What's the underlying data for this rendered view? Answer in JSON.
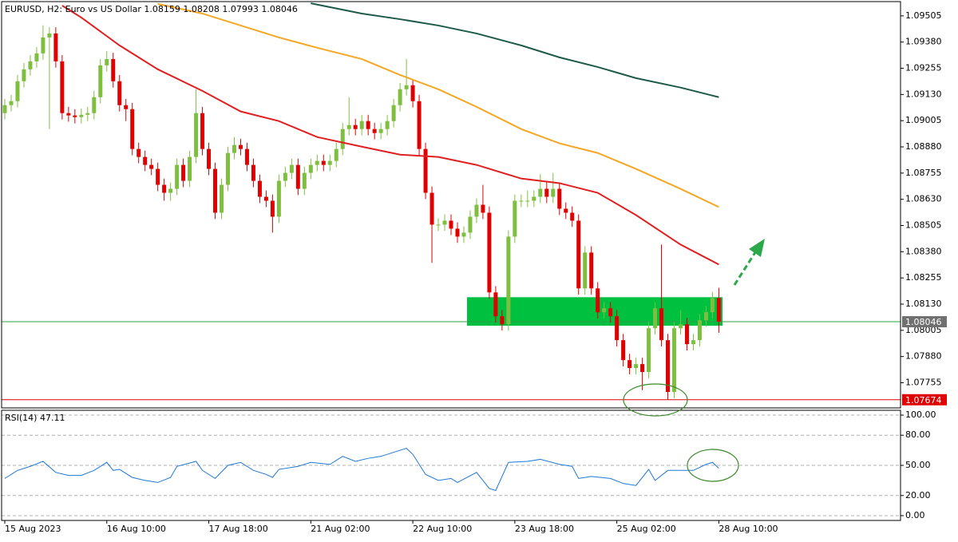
{
  "chart_data": [
    {
      "type": "candlestick",
      "title": "EURUSD, H2:  Euro vs US Dollar  1.08159 1.08208 1.07993 1.08046",
      "bull_color": "#7fbf3f",
      "bear_color": "#e00000",
      "open": [
        1.09041,
        1.09079,
        1.09098,
        1.09193,
        1.0925,
        1.09288,
        1.09326,
        1.09402,
        1.09421,
        1.09288,
        1.09041,
        1.0903,
        1.09022,
        1.09033,
        1.09041,
        1.09117,
        1.09269,
        1.09299,
        1.09193,
        1.09079,
        1.0906,
        1.0887,
        1.08832,
        1.08794,
        1.08775,
        1.08699,
        1.08661,
        1.0868,
        1.08794,
        1.08718,
        1.08832,
        1.09041,
        1.0887,
        1.08775,
        1.08566,
        1.08699,
        1.08851,
        1.08889,
        1.0887,
        1.08794,
        1.08718,
        1.08642,
        1.08623,
        1.08547,
        1.08718,
        1.08756,
        1.08794,
        1.0868,
        1.08756,
        1.08794,
        1.08813,
        1.08794,
        1.08813,
        1.0887,
        1.08965,
        1.08984,
        1.08965,
        1.09003,
        1.08965,
        1.08946,
        1.08965,
        1.09003,
        1.09079,
        1.09155,
        1.09174,
        1.09098,
        1.0887,
        1.08661,
        1.08509,
        1.08509,
        1.08528,
        1.0849,
        1.08452,
        1.08471,
        1.08547,
        1.08604,
        1.08566,
        1.08186,
        1.08072,
        1.08034,
        1.08452,
        1.08623,
        1.08623,
        1.08623,
        1.08642,
        1.0868,
        1.08642,
        1.0868,
        1.08585,
        1.08566,
        1.08528,
        1.08205,
        1.08376,
        1.08205,
        1.08091,
        1.0811,
        1.08072,
        1.07958,
        1.07863,
        1.07825,
        1.07844,
        1.07806,
        1.08015,
        1.0811,
        1.07958,
        1.07711,
        1.08015,
        1.08034,
        1.07939,
        1.07958,
        1.08053,
        1.08091,
        1.08159
      ],
      "high": [
        1.09109,
        1.09128,
        1.09223,
        1.0928,
        1.09318,
        1.09356,
        1.0946,
        1.09451,
        1.09451,
        1.09318,
        1.09071,
        1.0906,
        1.09063,
        1.09071,
        1.09147,
        1.09299,
        1.09337,
        1.09329,
        1.09223,
        1.09109,
        1.0909,
        1.089,
        1.08862,
        1.08824,
        1.08805,
        1.08729,
        1.0871,
        1.08824,
        1.08824,
        1.08862,
        1.09155,
        1.09071,
        1.089,
        1.08805,
        1.08729,
        1.08881,
        1.08927,
        1.08919,
        1.089,
        1.08824,
        1.08748,
        1.08672,
        1.08653,
        1.08748,
        1.08786,
        1.08824,
        1.08824,
        1.08786,
        1.08824,
        1.08843,
        1.08843,
        1.08843,
        1.089,
        1.08995,
        1.09117,
        1.09014,
        1.09033,
        1.09033,
        1.08995,
        1.08995,
        1.09033,
        1.09109,
        1.09185,
        1.09299,
        1.09204,
        1.09128,
        1.089,
        1.08691,
        1.08539,
        1.08558,
        1.08558,
        1.0852,
        1.08501,
        1.08577,
        1.08634,
        1.08699,
        1.08596,
        1.08216,
        1.08102,
        1.08482,
        1.08653,
        1.08653,
        1.08672,
        1.08672,
        1.0875,
        1.0871,
        1.08756,
        1.0871,
        1.08615,
        1.08596,
        1.08558,
        1.08406,
        1.08406,
        1.08235,
        1.0814,
        1.0814,
        1.08102,
        1.07988,
        1.07893,
        1.07874,
        1.07874,
        1.08045,
        1.0814,
        1.08414,
        1.07988,
        1.08045,
        1.08102,
        1.08064,
        1.07988,
        1.08083,
        1.08121,
        1.08189,
        1.08208
      ],
      "low": [
        1.09011,
        1.09049,
        1.09068,
        1.09163,
        1.0922,
        1.09258,
        1.09296,
        1.08965,
        1.09258,
        1.09011,
        1.09,
        1.08992,
        1.08992,
        1.09003,
        1.09011,
        1.09087,
        1.09239,
        1.09163,
        1.09049,
        1.09003,
        1.0884,
        1.08802,
        1.08764,
        1.08745,
        1.08669,
        1.08623,
        1.08623,
        1.0865,
        1.08688,
        1.08688,
        1.08802,
        1.0884,
        1.08745,
        1.08536,
        1.08536,
        1.08669,
        1.08821,
        1.0884,
        1.08764,
        1.08688,
        1.08612,
        1.08593,
        1.08471,
        1.08517,
        1.08688,
        1.08726,
        1.0865,
        1.0865,
        1.08726,
        1.08764,
        1.08764,
        1.08764,
        1.08783,
        1.0884,
        1.08935,
        1.08935,
        1.08935,
        1.08935,
        1.08916,
        1.08916,
        1.08935,
        1.08973,
        1.09049,
        1.09125,
        1.09068,
        1.0884,
        1.08631,
        1.08327,
        1.08479,
        1.08479,
        1.0846,
        1.08422,
        1.08422,
        1.08441,
        1.08517,
        1.08536,
        1.08156,
        1.08042,
        1.08004,
        1.08004,
        1.08422,
        1.08593,
        1.08593,
        1.08593,
        1.08612,
        1.08612,
        1.08612,
        1.08555,
        1.08536,
        1.08498,
        1.08175,
        1.08175,
        1.08175,
        1.08061,
        1.08061,
        1.08042,
        1.07928,
        1.07833,
        1.07795,
        1.07795,
        1.07719,
        1.07776,
        1.07985,
        1.07928,
        1.07674,
        1.07681,
        1.07985,
        1.07909,
        1.07909,
        1.07928,
        1.08023,
        1.08061,
        1.07993
      ],
      "close": [
        1.09079,
        1.09098,
        1.09193,
        1.0925,
        1.09288,
        1.09326,
        1.09402,
        1.09421,
        1.09288,
        1.09041,
        1.0903,
        1.09022,
        1.09033,
        1.09041,
        1.09117,
        1.09269,
        1.09299,
        1.09193,
        1.09079,
        1.0906,
        1.0887,
        1.08832,
        1.08794,
        1.08775,
        1.08699,
        1.08661,
        1.0868,
        1.08794,
        1.08718,
        1.08832,
        1.09041,
        1.0887,
        1.08775,
        1.08566,
        1.08699,
        1.08851,
        1.08889,
        1.0887,
        1.08794,
        1.08718,
        1.08642,
        1.08623,
        1.08547,
        1.08718,
        1.08756,
        1.08794,
        1.0868,
        1.08756,
        1.08794,
        1.08813,
        1.08794,
        1.08813,
        1.0887,
        1.08965,
        1.08984,
        1.08965,
        1.09003,
        1.08965,
        1.08946,
        1.08965,
        1.09003,
        1.09079,
        1.09155,
        1.09174,
        1.09098,
        1.0887,
        1.08661,
        1.08509,
        1.08509,
        1.08528,
        1.0849,
        1.08452,
        1.08471,
        1.08547,
        1.08604,
        1.08566,
        1.08186,
        1.08072,
        1.08034,
        1.08452,
        1.08623,
        1.08623,
        1.08623,
        1.08642,
        1.0868,
        1.08642,
        1.0868,
        1.08585,
        1.08566,
        1.08528,
        1.08205,
        1.08376,
        1.08205,
        1.08091,
        1.0811,
        1.08072,
        1.07958,
        1.07863,
        1.07825,
        1.07844,
        1.07806,
        1.08015,
        1.0811,
        1.07958,
        1.07711,
        1.08015,
        1.08034,
        1.07939,
        1.07958,
        1.08053,
        1.08091,
        1.08159,
        1.08046
      ],
      "series": [
        {
          "color": "#e02020",
          "x": [
            9,
            12,
            18,
            24,
            31,
            37,
            43,
            49,
            56,
            62,
            68,
            74,
            81,
            87,
            93,
            99,
            106,
            112
          ],
          "values": [
            1.09554,
            1.09497,
            1.09364,
            1.0925,
            1.09147,
            1.09049,
            1.09003,
            1.08927,
            1.08881,
            1.08843,
            1.08832,
            1.08794,
            1.08729,
            1.08707,
            1.08661,
            1.08555,
            1.08414,
            1.08319
          ]
        },
        {
          "color": "#f5a623",
          "x": [
            24,
            31,
            37,
            43,
            49,
            56,
            62,
            68,
            74,
            81,
            87,
            93,
            99,
            106,
            112
          ],
          "values": [
            1.09562,
            1.09516,
            1.09459,
            1.09402,
            1.09353,
            1.09299,
            1.09223,
            1.09155,
            1.09071,
            1.08965,
            1.08897,
            1.08851,
            1.08775,
            1.0868,
            1.08593
          ]
        },
        {
          "color": "#1e5a4a",
          "x": [
            48,
            56,
            62,
            68,
            74,
            81,
            87,
            93,
            99,
            106,
            112
          ],
          "values": [
            1.09565,
            1.09516,
            1.09489,
            1.09459,
            1.09421,
            1.09364,
            1.09307,
            1.09261,
            1.09208,
            1.09163,
            1.09117
          ]
        }
      ],
      "price_lines": [
        {
          "value": 1.08046,
          "color": "#2ea043",
          "label_bg": "#707070"
        },
        {
          "value": 1.07674,
          "color": "#e00000",
          "label_bg": "#e00000"
        }
      ],
      "zone": {
        "from": 1.08027,
        "to": 1.08163,
        "color": "#00c040"
      },
      "xlim": [
        -0.5,
        140.5
      ],
      "xticks": [
        {
          "value": 0,
          "label": "15 Aug 2023"
        },
        {
          "value": 16,
          "label": "16 Aug 10:00"
        },
        {
          "value": 32,
          "label": "17 Aug 18:00"
        },
        {
          "value": 48,
          "label": "21 Aug 02:00"
        },
        {
          "value": 64,
          "label": "22 Aug 10:00"
        },
        {
          "value": 80,
          "label": "23 Aug 18:00"
        },
        {
          "value": 96,
          "label": "25 Aug 02:00"
        },
        {
          "value": 112,
          "label": "28 Aug 10:00"
        }
      ],
      "ylim": [
        1.07635,
        1.09573
      ],
      "yticks": [
        1.09505,
        {
          "value": 1.0938,
          "label": "1.09380"
        },
        1.09255,
        {
          "value": 1.0913,
          "label": "1.09130"
        },
        1.09005,
        {
          "value": 1.0888,
          "label": "1.08880"
        },
        1.08755,
        {
          "value": 1.0863,
          "label": "1.08630"
        },
        1.08505,
        {
          "value": 1.0838,
          "label": "1.08380"
        },
        1.08255,
        {
          "value": 1.0813,
          "label": "1.08130"
        },
        1.08005,
        {
          "value": 1.0788,
          "label": "1.07880"
        },
        1.07755
      ]
    },
    {
      "type": "line",
      "title": "RSI(14) 47.11",
      "series": [
        {
          "color": "#1e78d8",
          "x": [
            0,
            2,
            4,
            6,
            8,
            10,
            12,
            14,
            16,
            17,
            18,
            20,
            22,
            24,
            26,
            27,
            30,
            31,
            33,
            35,
            37,
            39,
            41,
            42,
            43,
            46,
            48,
            51,
            53,
            55,
            57,
            59,
            63,
            64,
            66,
            68,
            70,
            71,
            74,
            75,
            76,
            77,
            79,
            82,
            84,
            87,
            89,
            90,
            92,
            95,
            97,
            99,
            101,
            102,
            104,
            106,
            108,
            110,
            111,
            112
          ],
          "values": [
            37,
            45,
            49,
            54,
            43,
            40,
            40,
            45,
            53,
            45,
            46,
            38,
            35,
            33,
            38,
            49,
            54,
            45,
            37,
            50,
            53,
            45,
            41,
            38,
            46,
            49,
            53,
            51,
            59,
            54,
            57,
            59,
            67,
            61,
            41,
            35,
            37,
            33,
            43,
            35,
            27,
            25,
            53,
            54,
            56,
            51,
            49,
            37,
            39,
            37,
            32,
            30,
            46,
            35,
            45,
            45,
            45,
            51,
            53,
            47.11
          ]
        }
      ],
      "ylim": [
        -4.8,
        104.8
      ],
      "yticks": [
        {
          "value": 100,
          "label": "100.00"
        },
        {
          "value": 80,
          "label": "80.00"
        },
        {
          "value": 50,
          "label": "50.00"
        },
        {
          "value": 20,
          "label": "20.00"
        },
        {
          "value": 0,
          "label": "0.00"
        }
      ]
    }
  ]
}
